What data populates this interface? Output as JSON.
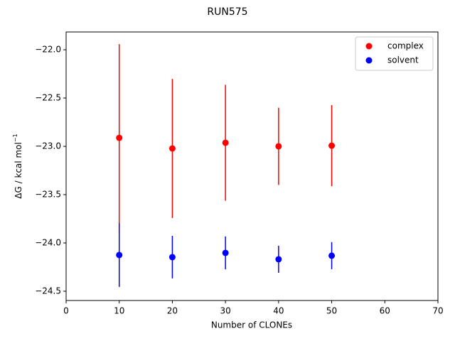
{
  "chart_data": {
    "type": "errorbar-scatter",
    "title": "RUN575",
    "xlabel": "Number of CLONEs",
    "ylabel": {
      "text": "ΔG / kcal mol",
      "superscript": "−1"
    },
    "x": [
      10,
      20,
      30,
      40,
      50
    ],
    "series": [
      {
        "name": "complex",
        "color": "#ff0000",
        "values": [
          -22.912,
          -23.022,
          -22.963,
          -23.0,
          -22.993
        ],
        "errors": [
          0.97,
          0.72,
          0.6,
          0.4,
          0.42
        ]
      },
      {
        "name": "solvent",
        "color": "#0000ff",
        "values": [
          -24.125,
          -24.147,
          -24.103,
          -24.169,
          -24.132
        ],
        "errors": [
          0.33,
          0.22,
          0.17,
          0.14,
          0.14
        ]
      }
    ],
    "xlim": [
      0,
      70
    ],
    "xticks": [
      0,
      10,
      20,
      30,
      40,
      50,
      60,
      70
    ],
    "ylim": [
      -24.596,
      -21.816
    ],
    "yticks": [
      {
        "value": -24.5,
        "label": "−24.5"
      },
      {
        "value": -24.0,
        "label": "−24.0"
      },
      {
        "value": -23.5,
        "label": "−23.5"
      },
      {
        "value": -23.0,
        "label": "−23.0"
      },
      {
        "value": -22.5,
        "label": "−22.5"
      },
      {
        "value": -22.0,
        "label": "−22.0"
      }
    ],
    "legend": "upper right"
  }
}
